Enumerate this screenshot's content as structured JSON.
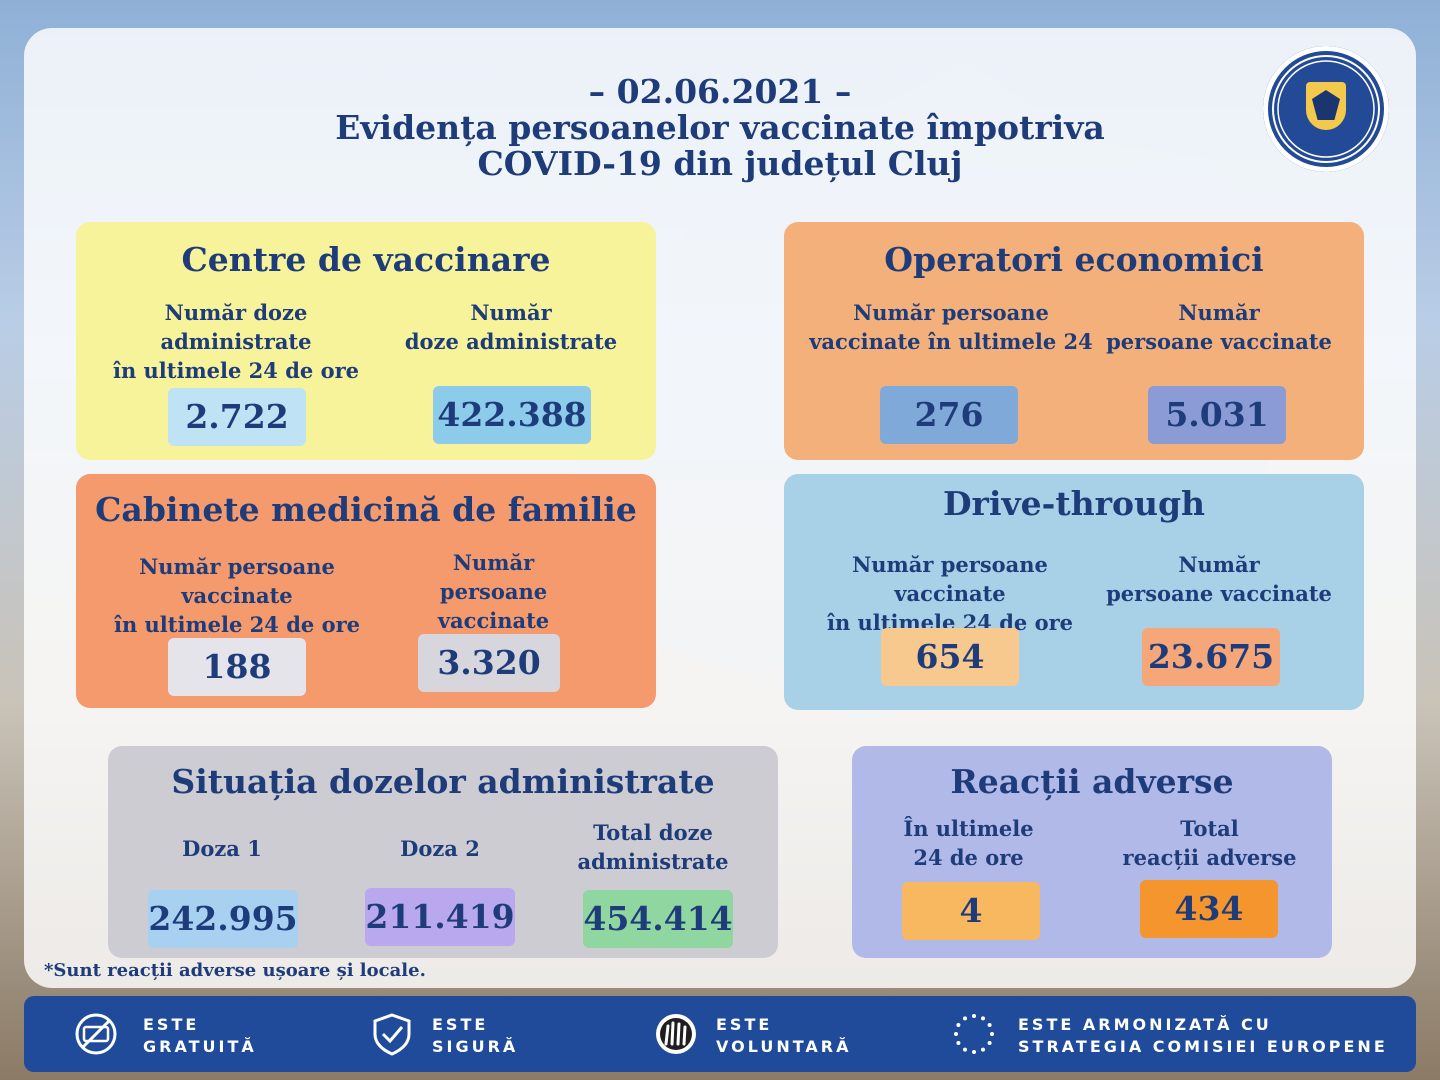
{
  "header": {
    "date": "– 02.06.2021 –",
    "title_line1": "Evidența persoanelor vaccinate împotriva",
    "title_line2": "COVID-19 din județul Cluj",
    "logo_text": "INSTITUȚIA PREFECTULUI JUDEȚUL CLUJ"
  },
  "centre": {
    "title": "Centre de vaccinare",
    "label_24h": "Număr doze administrate\nîn ultimele 24 de ore",
    "label_total": "Număr\ndoze administrate",
    "value_24h": "2.722",
    "value_total": "422.388"
  },
  "operatori": {
    "title": "Operatori economici",
    "label_24h": "Număr persoane\nvaccinate în ultimele 24",
    "label_total": "Număr\npersoane vaccinate",
    "value_24h": "276",
    "value_total": "5.031"
  },
  "cabinete": {
    "title": "Cabinete medicină de familie",
    "label_24h": "Număr persoane vaccinate\nîn ultimele 24 de ore",
    "label_total": "Număr\npersoane vaccinate",
    "value_24h": "188",
    "value_total": "3.320"
  },
  "drive": {
    "title": "Drive-through",
    "label_24h": "Număr persoane vaccinate\nîn ultimele 24 de ore",
    "label_total": "Număr\npersoane vaccinate",
    "value_24h": "654",
    "value_total": "23.675"
  },
  "situatia": {
    "title": "Situația dozelor administrate",
    "label_doza1": "Doza 1",
    "label_doza2": "Doza 2",
    "label_total": "Total doze\nadministrate",
    "value_doza1": "242.995",
    "value_doza2": "211.419",
    "value_total": "454.414"
  },
  "reactii": {
    "title": "Reacții adverse",
    "label_24h": "În ultimele\n24 de ore",
    "label_total": "Total\nreacții adverse",
    "value_24h": "4",
    "value_total": "434"
  },
  "footnote": "*Sunt reacții adverse ușoare și locale.",
  "features": [
    {
      "icon": "free-icon",
      "text": "ESTE\nGRATUITĂ"
    },
    {
      "icon": "shield-check-icon",
      "text": "ESTE\nSIGURĂ"
    },
    {
      "icon": "raised-hands-icon",
      "text": "ESTE\nVOLUNTARĂ"
    },
    {
      "icon": "eu-stars-icon",
      "text": "ESTE ARMONIZATĂ CU\nSTRATEGIA COMISIEI EUROPENE"
    }
  ],
  "colors": {
    "text": "#1f3c7a",
    "centre_bg": "#f7f39a",
    "operatori_bg": "#f4b07a",
    "cabinete_bg": "#f49a6c",
    "drive_bg": "#a8d0e6",
    "situatia_bg": "#c9c9cf",
    "reactii_bg": "#aab4e6",
    "footer_bg": "#1f4b9a"
  }
}
